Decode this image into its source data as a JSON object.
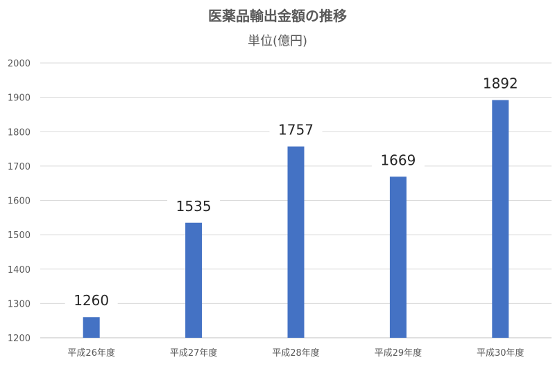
{
  "chart_data": {
    "type": "bar",
    "title": "医薬品輸出金額の推移",
    "subtitle": "単位(億円)",
    "categories": [
      "平成26年度",
      "平成27年度",
      "平成28年度",
      "平成29年度",
      "平成30年度"
    ],
    "values": [
      1260,
      1535,
      1757,
      1669,
      1892
    ],
    "ylim": [
      1200,
      2000
    ],
    "yticks": [
      1200,
      1300,
      1400,
      1500,
      1600,
      1700,
      1800,
      1900,
      2000
    ],
    "grid": true,
    "legend": "none",
    "bar_color": "#4472c4"
  }
}
